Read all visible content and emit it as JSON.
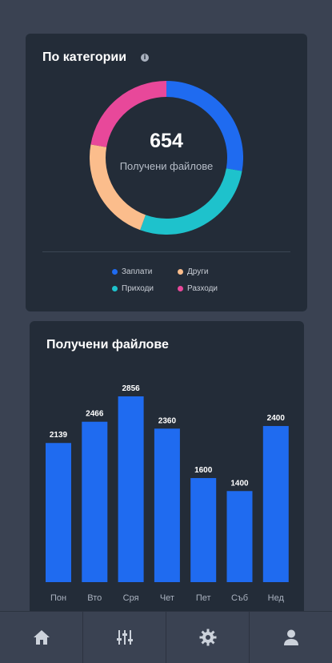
{
  "category_card": {
    "title": "По категории",
    "info_icon": "info-icon",
    "total": "654",
    "total_label": "Получени файлове",
    "legend": [
      {
        "label": "Заплати",
        "color": "#1f6bf0"
      },
      {
        "label": "Други",
        "color": "#fbbd8c"
      },
      {
        "label": "Приходи",
        "color": "#1ec2cc"
      },
      {
        "label": "Разходи",
        "color": "#e8489a"
      }
    ]
  },
  "bar_card": {
    "title": "Получени файлове"
  },
  "chart_data": [
    {
      "type": "pie",
      "categories": [
        "Заплати",
        "Приходи",
        "Други",
        "Разходи"
      ],
      "values": [
        25,
        25,
        20,
        20
      ],
      "colors": [
        "#1f6bf0",
        "#1ec2cc",
        "#fbbd8c",
        "#e8489a"
      ],
      "title": "По категории",
      "center_value": "654",
      "center_label": "Получени файлове",
      "legend_position": "bottom"
    },
    {
      "type": "bar",
      "categories": [
        "Пон",
        "Вто",
        "Сря",
        "Чет",
        "Пет",
        "Съб",
        "Нед"
      ],
      "values": [
        2139,
        2466,
        2856,
        2360,
        1600,
        1400,
        2400
      ],
      "title": "Получени файлове",
      "ylim": [
        0,
        2856
      ],
      "color": "#1f6bf0",
      "grid": false
    }
  ],
  "nav": {
    "items": [
      {
        "icon": "home-icon"
      },
      {
        "icon": "sliders-icon"
      },
      {
        "icon": "gear-icon"
      },
      {
        "icon": "user-icon"
      }
    ]
  }
}
